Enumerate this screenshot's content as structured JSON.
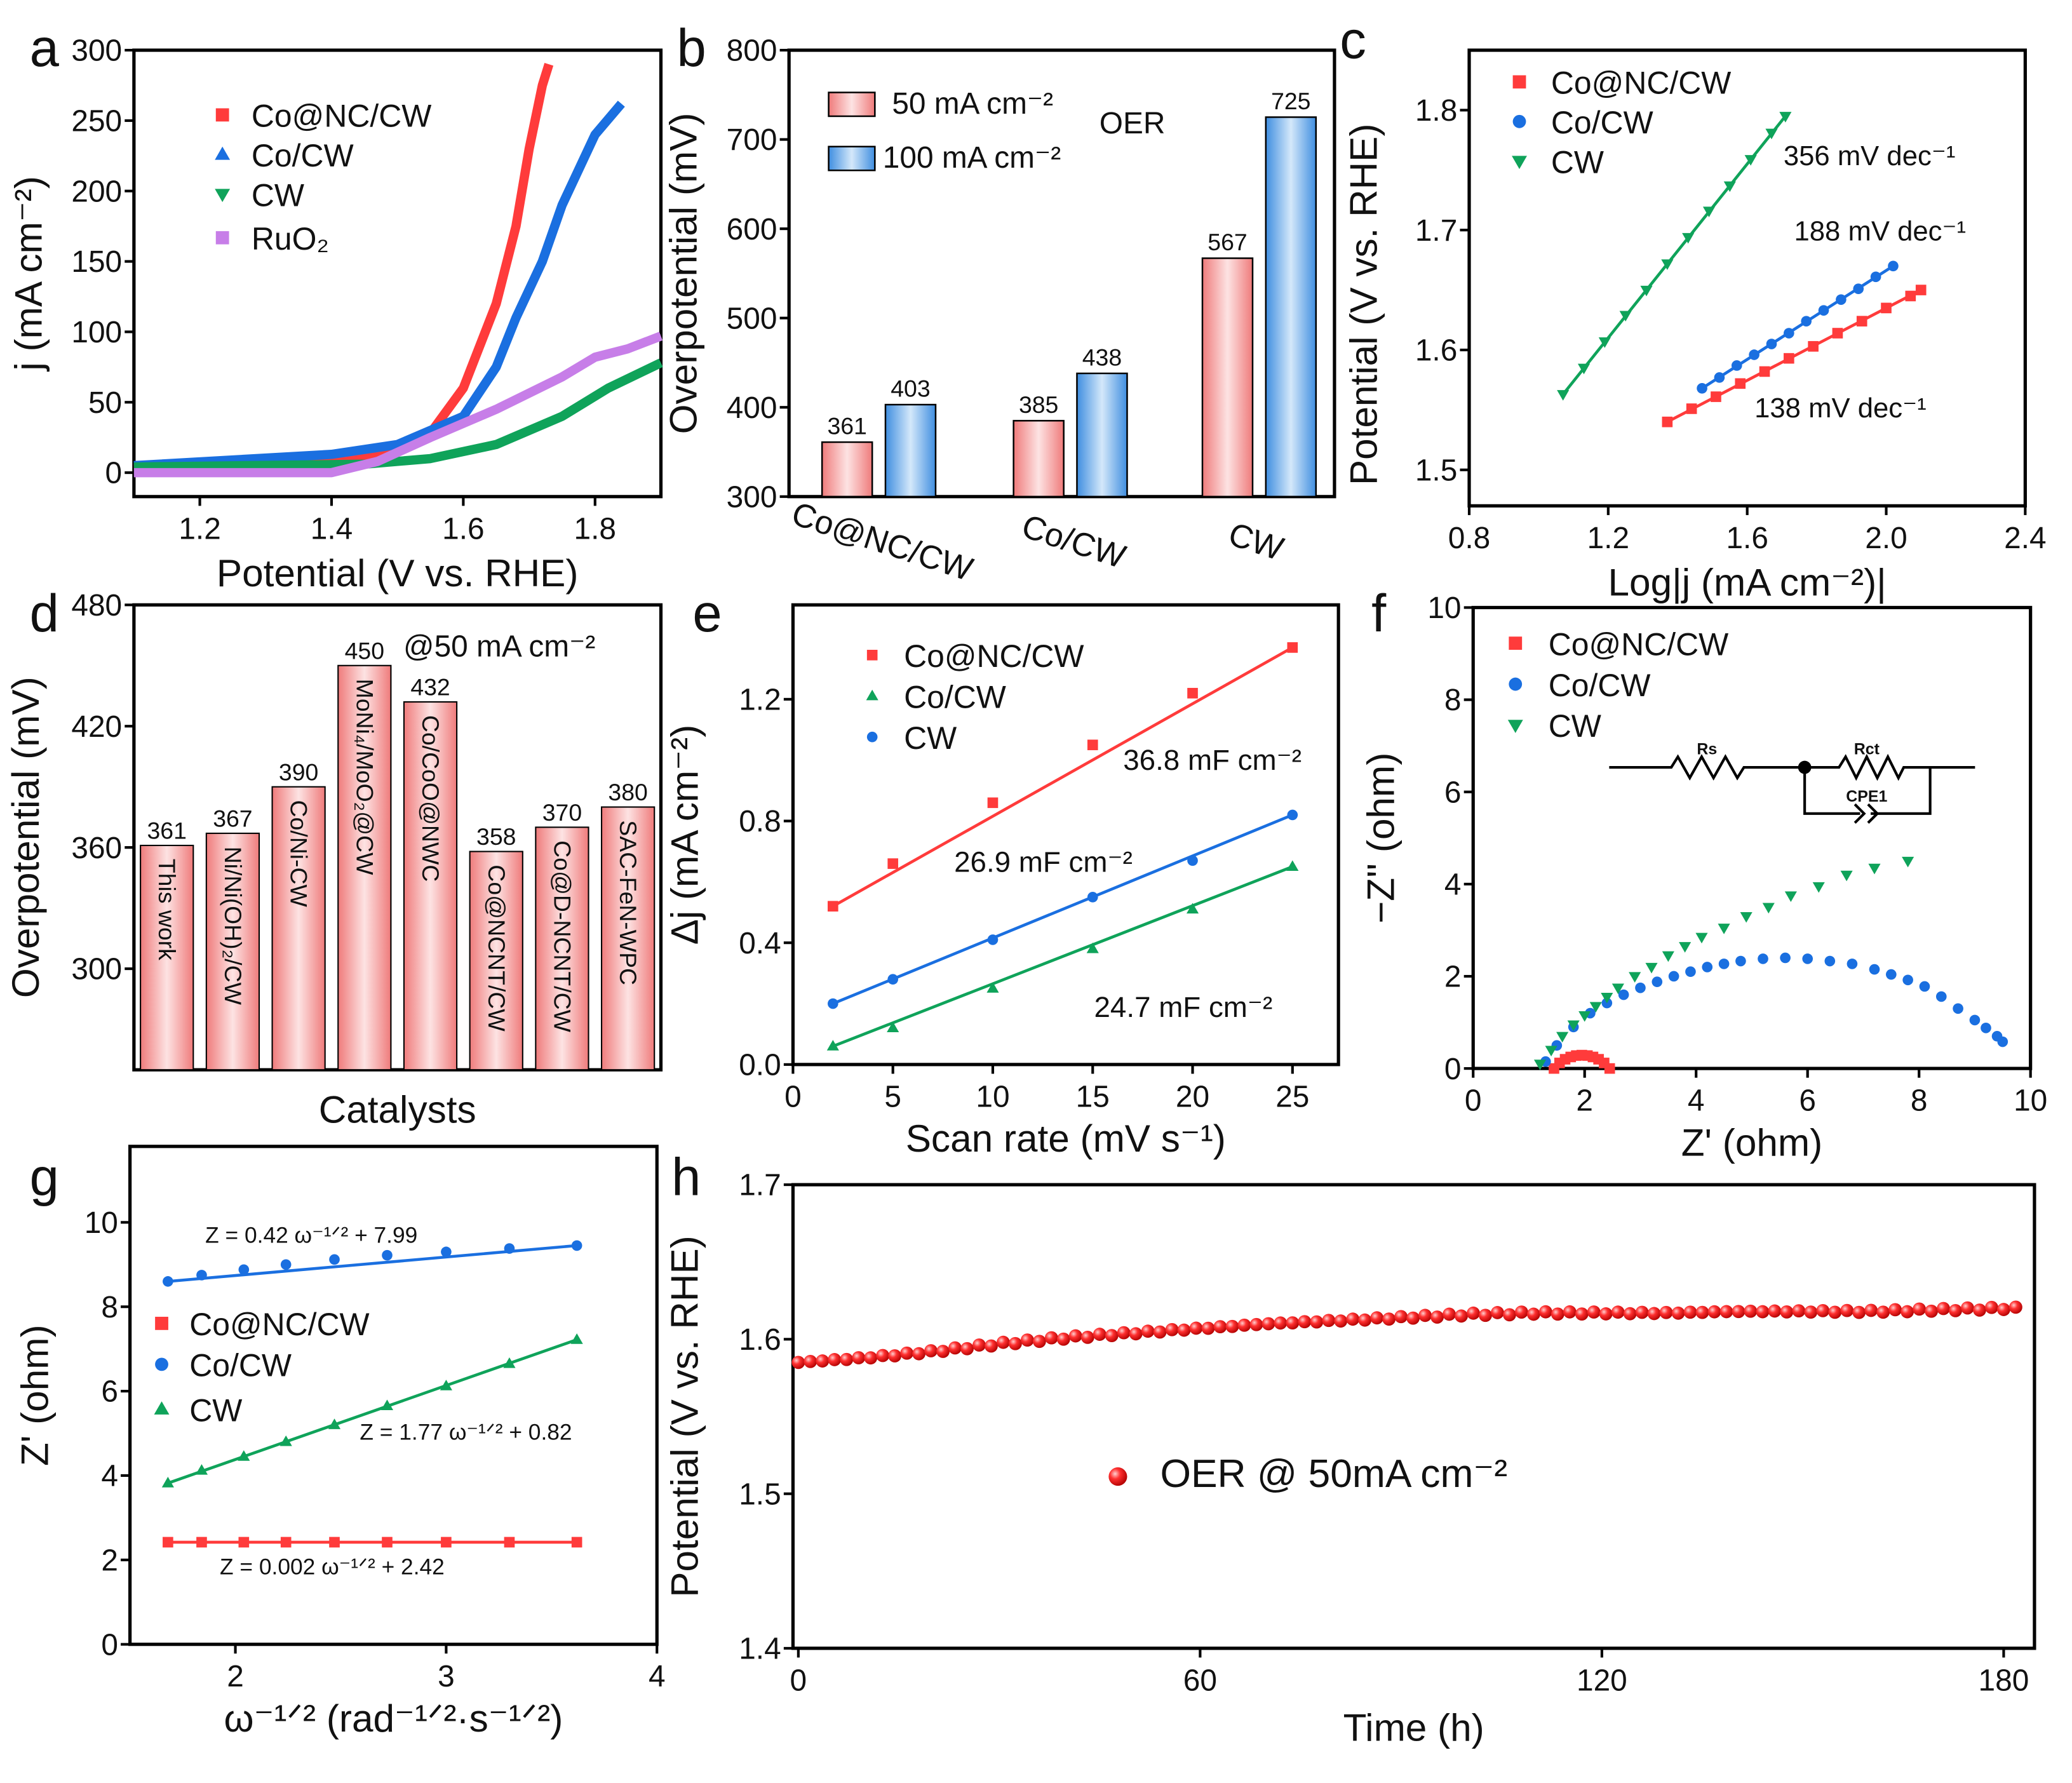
{
  "panel_letters": [
    "a",
    "b",
    "c",
    "d",
    "e",
    "f",
    "g",
    "h"
  ],
  "chart_data": [
    {
      "panel": "a",
      "type": "line",
      "xlabel": "Potential (V vs. RHE)",
      "ylabel": "j (mA cm⁻²)",
      "xlim": [
        1.1,
        1.9
      ],
      "ylim": [
        -17,
        300
      ],
      "xticks": [
        "1.2",
        "1.4",
        "1.6",
        "1.8"
      ],
      "yticks": [
        "0",
        "50",
        "100",
        "150",
        "200",
        "250",
        "300"
      ],
      "legend": "top-left",
      "series": [
        {
          "name": "Co@NC/CW",
          "color": "#ff3b3b",
          "marker": "square",
          "x": [
            1.1,
            1.4,
            1.5,
            1.55,
            1.6,
            1.65,
            1.68,
            1.7,
            1.72,
            1.73
          ],
          "y": [
            3,
            8,
            15,
            28,
            60,
            120,
            175,
            230,
            275,
            290
          ]
        },
        {
          "name": "Co/CW",
          "color": "#1a6fe0",
          "marker": "triangle",
          "x": [
            1.1,
            1.4,
            1.5,
            1.6,
            1.65,
            1.68,
            1.72,
            1.75,
            1.8,
            1.84
          ],
          "y": [
            5,
            13,
            20,
            40,
            75,
            110,
            150,
            190,
            240,
            262
          ]
        },
        {
          "name": "CW",
          "color": "#0fa35a",
          "marker": "triangle-down",
          "x": [
            1.1,
            1.45,
            1.55,
            1.65,
            1.75,
            1.82,
            1.9
          ],
          "y": [
            4,
            6,
            10,
            20,
            40,
            60,
            78
          ]
        },
        {
          "name": "RuO₂",
          "color": "#c77ee8",
          "marker": "square",
          "x": [
            1.1,
            1.4,
            1.47,
            1.55,
            1.65,
            1.75,
            1.8,
            1.85,
            1.9
          ],
          "y": [
            0,
            0,
            8,
            25,
            45,
            68,
            82,
            88,
            97
          ]
        }
      ]
    },
    {
      "panel": "b",
      "type": "bar",
      "ylabel": "Overpotential (mV)",
      "ylim": [
        300,
        800
      ],
      "yticks": [
        "300",
        "400",
        "500",
        "600",
        "700",
        "800"
      ],
      "categories": [
        "Co@NC/CW",
        "Co/CW",
        "CW"
      ],
      "series": [
        {
          "name": "50 mA cm⁻²",
          "color": "#f4a0a0",
          "values": [
            361,
            385,
            567
          ]
        },
        {
          "name": "100 mA cm⁻²",
          "color": "#4f98e6",
          "values": [
            403,
            438,
            725
          ]
        }
      ],
      "annotations": [
        "OER"
      ],
      "legend": "top-left"
    },
    {
      "panel": "c",
      "type": "scatter",
      "xlabel": "Log|j (mA cm⁻²)|",
      "ylabel": "Potential (V vs. RHE)",
      "xlim": [
        0.8,
        2.4
      ],
      "ylim": [
        1.47,
        1.85
      ],
      "xticks": [
        "0.8",
        "1.2",
        "1.6",
        "2.0",
        "2.4"
      ],
      "yticks": [
        "1.5",
        "1.6",
        "1.7",
        "1.8"
      ],
      "legend": "top-left",
      "series": [
        {
          "name": "Co@NC/CW",
          "color": "#ff3b3b",
          "marker": "square",
          "x": [
            1.37,
            1.44,
            1.51,
            1.58,
            1.65,
            1.72,
            1.79,
            1.86,
            1.93,
            2.0,
            2.07,
            2.1
          ],
          "y": [
            1.54,
            1.551,
            1.561,
            1.572,
            1.582,
            1.593,
            1.603,
            1.614,
            1.624,
            1.635,
            1.645,
            1.65
          ]
        },
        {
          "name": "Co/CW",
          "color": "#1a6fe0",
          "marker": "circle",
          "x": [
            1.47,
            1.52,
            1.57,
            1.62,
            1.67,
            1.72,
            1.77,
            1.82,
            1.87,
            1.92,
            1.97,
            2.02
          ],
          "y": [
            1.568,
            1.577,
            1.587,
            1.596,
            1.605,
            1.614,
            1.624,
            1.633,
            1.642,
            1.651,
            1.661,
            1.67
          ]
        },
        {
          "name": "CW",
          "color": "#0fa35a",
          "marker": "triangle-down",
          "x": [
            1.07,
            1.13,
            1.19,
            1.25,
            1.31,
            1.37,
            1.43,
            1.49,
            1.55,
            1.61,
            1.67,
            1.71
          ],
          "y": [
            1.563,
            1.585,
            1.607,
            1.629,
            1.65,
            1.672,
            1.694,
            1.716,
            1.737,
            1.759,
            1.781,
            1.795
          ]
        }
      ],
      "annotations": [
        {
          "text": "356 mV dec⁻¹",
          "color": "#0a8a4a"
        },
        {
          "text": "188 mV dec⁻¹",
          "color": "#1560b0"
        },
        {
          "text": "138 mV dec⁻¹",
          "color": "#ee2222"
        }
      ]
    },
    {
      "panel": "d",
      "type": "bar",
      "xlabel": "Catalysts",
      "ylabel": "Overpotential (mV)",
      "ylim": [
        250,
        480
      ],
      "yticks": [
        "300",
        "360",
        "420",
        "480"
      ],
      "categories": [
        "This work",
        "Ni/Ni(OH)₂/CW",
        "Co/Ni-CW",
        "MoNi₄/MoO₂@CW",
        "Co/CoO@NWC",
        "Co@NCNT/CW",
        "Co@D-NCNT/CW",
        "SAC-FeN-WPC"
      ],
      "values": [
        361,
        367,
        390,
        450,
        432,
        358,
        370,
        380
      ],
      "color": "#f4a0a0",
      "annotations": [
        "@50 mA cm⁻²"
      ]
    },
    {
      "panel": "e",
      "type": "scatter",
      "xlabel": "Scan rate (mV s⁻¹)",
      "ylabel": "Δj (mA cm⁻²)",
      "xlim": [
        0,
        27.3
      ],
      "ylim": [
        0,
        1.51
      ],
      "xticks": [
        "0",
        "5",
        "10",
        "15",
        "20",
        "25"
      ],
      "yticks": [
        "0.0",
        "0.4",
        "0.8",
        "1.2"
      ],
      "legend": "top-left",
      "series": [
        {
          "name": "Co@NC/CW",
          "color": "#ff3b3b",
          "marker": "square",
          "x": [
            2,
            5,
            10,
            15,
            20,
            25
          ],
          "y": [
            0.52,
            0.66,
            0.86,
            1.05,
            1.22,
            1.37
          ]
        },
        {
          "name": "Co/CW",
          "color": "#0fa35a",
          "marker": "triangle",
          "x": [
            2,
            5,
            10,
            15,
            20,
            25
          ],
          "y": [
            0.06,
            0.12,
            0.25,
            0.38,
            0.51,
            0.65
          ]
        },
        {
          "name": "CW",
          "color": "#1a6fe0",
          "marker": "circle",
          "x": [
            2,
            5,
            10,
            15,
            20,
            25
          ],
          "y": [
            0.2,
            0.28,
            0.41,
            0.55,
            0.67,
            0.82
          ]
        }
      ],
      "annotations": [
        {
          "text": "36.8 mF cm⁻²",
          "color": "#111111"
        },
        {
          "text": "26.9 mF cm⁻²",
          "color": "#111111"
        },
        {
          "text": "24.7 mF cm⁻²",
          "color": "#111111"
        }
      ]
    },
    {
      "panel": "f",
      "type": "scatter",
      "xlabel": "Z' (ohm)",
      "ylabel": "−Z'' (ohm)",
      "xlim": [
        0,
        10
      ],
      "ylim": [
        0,
        10
      ],
      "xticks": [
        "0",
        "2",
        "4",
        "6",
        "8",
        "10"
      ],
      "yticks": [
        "0",
        "2",
        "4",
        "6",
        "8",
        "10"
      ],
      "legend": "top-left",
      "series": [
        {
          "name": "Co@NC/CW",
          "color": "#ff3b3b",
          "marker": "square",
          "x": [
            1.45,
            1.55,
            1.65,
            1.75,
            1.85,
            1.95,
            2.05,
            2.15,
            2.25,
            2.35,
            2.45
          ],
          "y": [
            0,
            0.12,
            0.2,
            0.25,
            0.28,
            0.29,
            0.28,
            0.25,
            0.2,
            0.12,
            0
          ]
        },
        {
          "name": "Co/CW",
          "color": "#1a6fe0",
          "marker": "circle",
          "x": [
            1.3,
            1.5,
            1.8,
            2.1,
            2.4,
            2.7,
            3.0,
            3.3,
            3.6,
            3.9,
            4.2,
            4.5,
            4.8,
            5.2,
            5.6,
            6.0,
            6.4,
            6.8,
            7.2,
            7.5,
            7.8,
            8.1,
            8.4,
            8.7,
            9.0,
            9.2,
            9.4,
            9.5
          ],
          "y": [
            0.15,
            0.5,
            0.9,
            1.2,
            1.42,
            1.6,
            1.75,
            1.88,
            2.0,
            2.1,
            2.2,
            2.27,
            2.33,
            2.38,
            2.4,
            2.38,
            2.33,
            2.27,
            2.15,
            2.04,
            1.92,
            1.78,
            1.56,
            1.3,
            1.05,
            0.88,
            0.7,
            0.58
          ]
        },
        {
          "name": "CW",
          "color": "#0fa35a",
          "marker": "triangle-down",
          "x": [
            1.2,
            1.4,
            1.6,
            1.8,
            2.0,
            2.2,
            2.4,
            2.6,
            2.9,
            3.2,
            3.5,
            3.8,
            4.1,
            4.5,
            4.9,
            5.3,
            5.7,
            6.2,
            6.7,
            7.2,
            7.8
          ],
          "y": [
            0.1,
            0.4,
            0.7,
            0.95,
            1.15,
            1.35,
            1.55,
            1.75,
            2.0,
            2.2,
            2.45,
            2.65,
            2.85,
            3.05,
            3.3,
            3.5,
            3.75,
            3.95,
            4.2,
            4.35,
            4.5
          ]
        }
      ],
      "circuit": {
        "labels": [
          "Rs",
          "Rct",
          "CPE1"
        ]
      }
    },
    {
      "panel": "g",
      "type": "scatter",
      "xlabel": "ω⁻¹ᐟ² (rad⁻¹ᐟ²·s⁻¹ᐟ²)",
      "ylabel": "Z' (ohm)",
      "xlim": [
        1.5,
        4
      ],
      "ylim": [
        0,
        11.8
      ],
      "xticks": [
        "2",
        "3",
        "4"
      ],
      "yticks": [
        "0",
        "2",
        "4",
        "6",
        "8",
        "10"
      ],
      "legend": "middle-left",
      "series": [
        {
          "name": "Co@NC/CW",
          "color": "#ff3b3b",
          "marker": "square",
          "x": [
            1.68,
            1.84,
            2.04,
            2.24,
            2.47,
            2.72,
            3.0,
            3.3,
            3.62
          ],
          "y": [
            2.42,
            2.42,
            2.42,
            2.42,
            2.42,
            2.42,
            2.42,
            2.42,
            2.42
          ]
        },
        {
          "name": "Co/CW",
          "color": "#1a6fe0",
          "marker": "circle",
          "x": [
            1.68,
            1.84,
            2.04,
            2.24,
            2.47,
            2.72,
            3.0,
            3.3,
            3.62
          ],
          "y": [
            8.6,
            8.75,
            8.88,
            9.0,
            9.12,
            9.22,
            9.3,
            9.38,
            9.45
          ]
        },
        {
          "name": "CW",
          "color": "#0fa35a",
          "marker": "triangle",
          "x": [
            1.68,
            1.84,
            2.04,
            2.24,
            2.47,
            2.72,
            3.0,
            3.3,
            3.62
          ],
          "y": [
            3.82,
            4.12,
            4.45,
            4.8,
            5.2,
            5.65,
            6.12,
            6.65,
            7.22
          ]
        }
      ],
      "annotations": [
        {
          "text": "Z = 0.42 ω⁻¹ᐟ² + 7.99",
          "color": "#1560b0"
        },
        {
          "text": "Z = 1.77 ω⁻¹ᐟ² + 0.82",
          "color": "#0a8a4a"
        },
        {
          "text": "Z = 0.002 ω⁻¹ᐟ² + 2.42",
          "color": "#ee2222"
        }
      ]
    },
    {
      "panel": "h",
      "type": "scatter",
      "xlabel": "Time (h)",
      "ylabel": "Potential (V vs. RHE)",
      "xlim": [
        -0.8,
        184.6
      ],
      "ylim": [
        1.4,
        1.7
      ],
      "xticks": [
        "0",
        "60",
        "120",
        "180"
      ],
      "yticks": [
        "1.4",
        "1.5",
        "1.6",
        "1.7"
      ],
      "legend": "center",
      "series": [
        {
          "name": "OER @ 50mA cm⁻²",
          "color": "#ee1111",
          "marker": "sphere",
          "x": [
            0,
            10,
            20,
            30,
            40,
            50,
            60,
            70,
            80,
            90,
            100,
            110,
            120,
            130,
            140,
            150,
            160,
            170,
            180,
            183
          ],
          "y": [
            1.585,
            1.588,
            1.592,
            1.597,
            1.601,
            1.604,
            1.607,
            1.61,
            1.612,
            1.614,
            1.616,
            1.617,
            1.617,
            1.617,
            1.618,
            1.618,
            1.618,
            1.619,
            1.62,
            1.62
          ]
        }
      ]
    }
  ]
}
